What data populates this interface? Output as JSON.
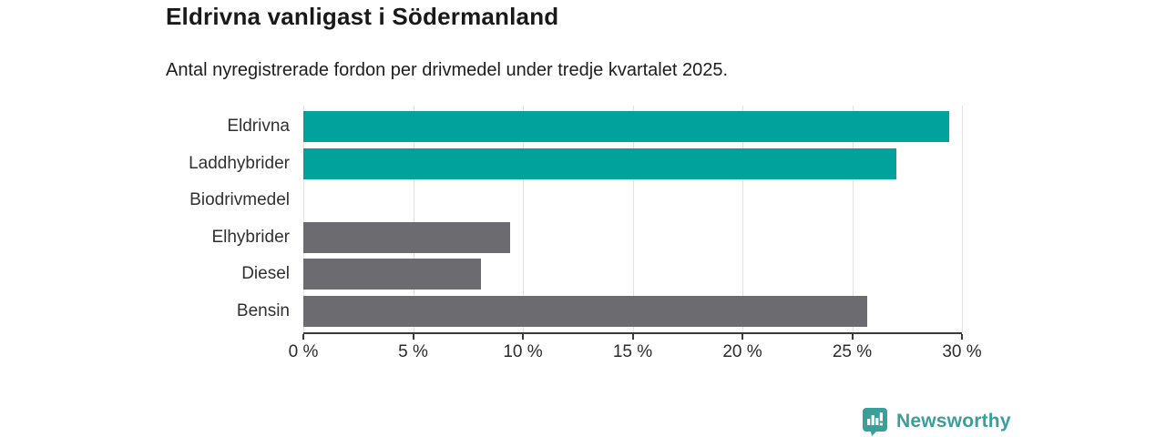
{
  "header": {
    "title": "Eldrivna vanligast i Södermanland",
    "subtitle": "Antal nyregistrerade fordon per drivmedel under tredje kvartalet 2025."
  },
  "chart_data": {
    "type": "bar",
    "orientation": "horizontal",
    "title": "Eldrivna vanligast i Södermanland",
    "subtitle": "Antal nyregistrerade fordon per drivmedel under tredje kvartalet 2025.",
    "categories": [
      "Eldrivna",
      "Laddhybrider",
      "Biodrivmedel",
      "Elhybrider",
      "Diesel",
      "Bensin"
    ],
    "values": [
      29.4,
      27.0,
      0,
      9.4,
      8.1,
      25.7
    ],
    "unit": "%",
    "bar_colors": [
      "#00a29b",
      "#00a29b",
      "#6b6b70",
      "#6b6b70",
      "#6b6b70",
      "#6b6b70"
    ],
    "highlight_color": "#00a29b",
    "default_color": "#6b6b70",
    "xlim": [
      0,
      30
    ],
    "x_tick_values": [
      0,
      5,
      10,
      15,
      20,
      25,
      30
    ],
    "x_tick_labels": [
      "0 %",
      "5 %",
      "10 %",
      "15 %",
      "20 %",
      "25 %",
      "30 %"
    ],
    "grid": "vertical-only",
    "gridline_color": "#e2e2e2",
    "axis_color": "#3a3a3a",
    "legend": "none"
  },
  "branding": {
    "logo_text": "Newsworthy",
    "logo_color": "#3a9e9b",
    "logo_icon": "bar-chart-speech-bubble"
  }
}
